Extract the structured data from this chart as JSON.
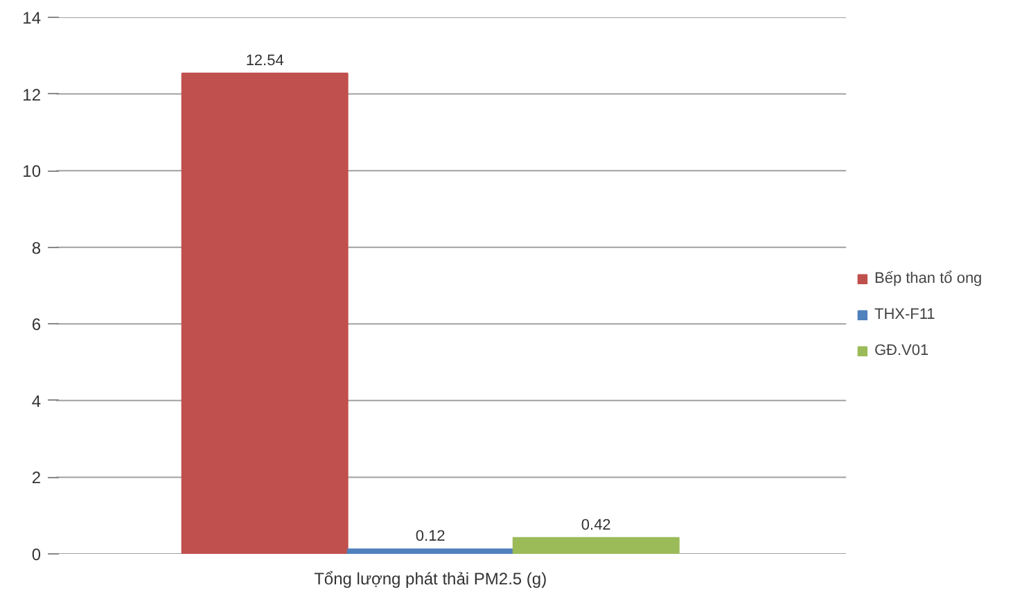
{
  "chart_data": {
    "type": "bar",
    "categories": [
      "Tổng lượng phát thải PM2.5 (g)"
    ],
    "series": [
      {
        "name": "Bếp than tổ ong",
        "color": "#c0504d",
        "values": [
          12.54
        ]
      },
      {
        "name": "THX-F11",
        "color": "#4f81bd",
        "values": [
          0.12
        ]
      },
      {
        "name": "GĐ.V01",
        "color": "#9bbb59",
        "values": [
          0.42
        ]
      }
    ],
    "ylim": [
      0,
      14
    ],
    "yticks": [
      0,
      2,
      4,
      6,
      8,
      10,
      12,
      14
    ],
    "grid": "y",
    "legend": "right",
    "data_labels": true
  }
}
